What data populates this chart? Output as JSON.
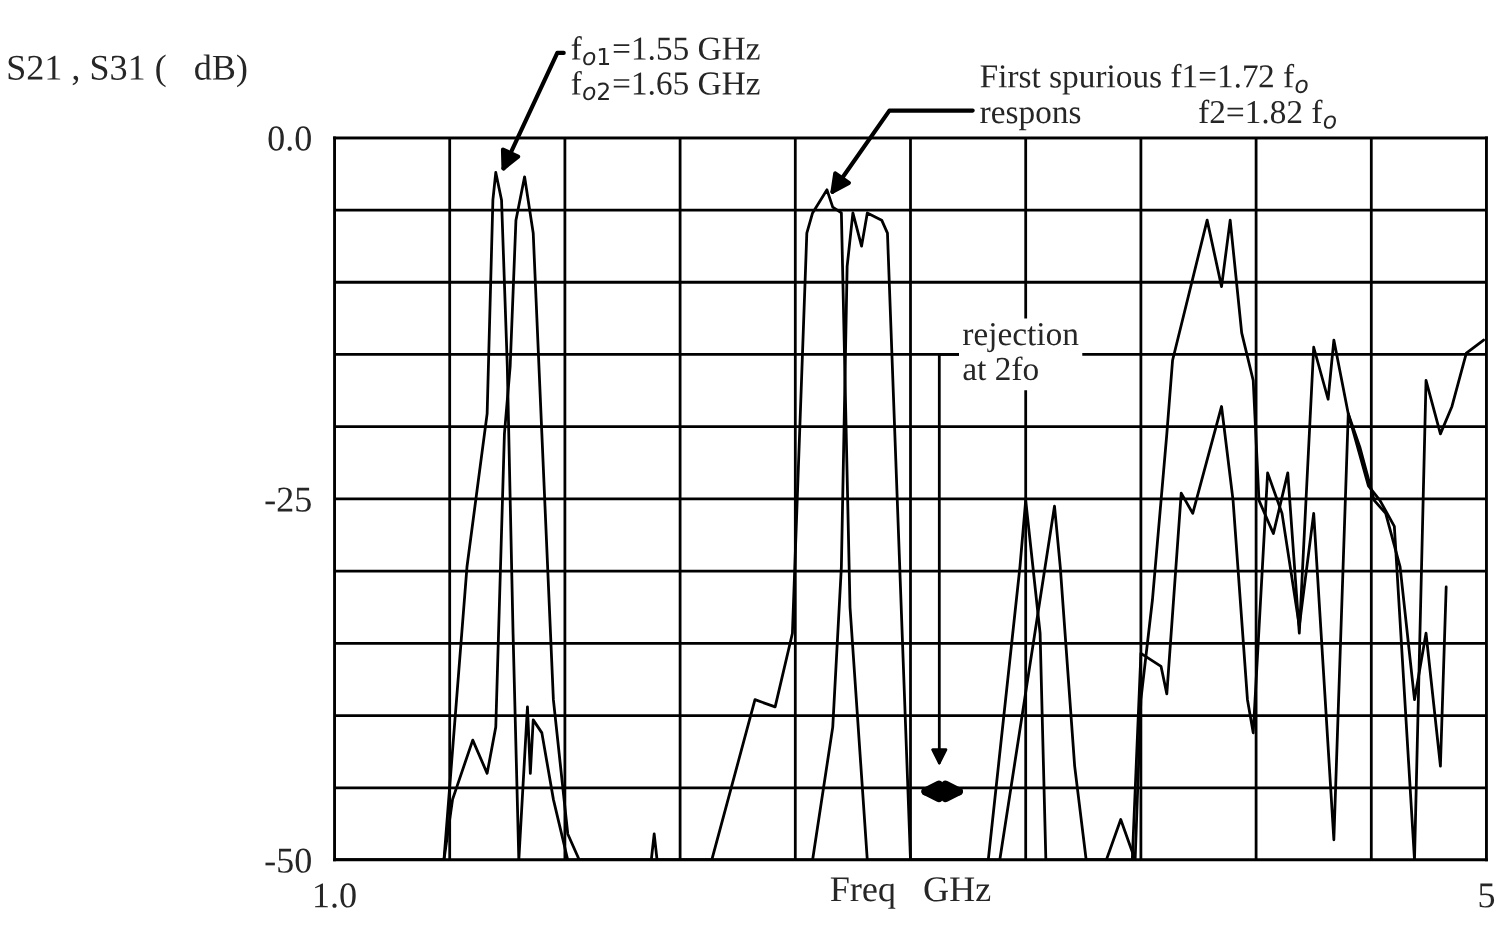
{
  "chart_data": {
    "type": "line",
    "ylabel": "S21 , S31 (   dB)",
    "xlabel": "Freq   GHz",
    "xlim": [
      1,
      5
    ],
    "ylim": [
      -50,
      0
    ],
    "xticks": [
      {
        "value": 1,
        "label": "1.0"
      },
      {
        "value": 1.4,
        "label": null
      },
      {
        "value": 1.8,
        "label": null
      },
      {
        "value": 2.2,
        "label": null
      },
      {
        "value": 2.6,
        "label": null
      },
      {
        "value": 3.0,
        "label": null
      },
      {
        "value": 3.4,
        "label": null
      },
      {
        "value": 3.8,
        "label": null
      },
      {
        "value": 4.2,
        "label": null
      },
      {
        "value": 4.6,
        "label": null
      },
      {
        "value": 5,
        "label": "5"
      }
    ],
    "yticks": [
      {
        "value": -50,
        "label": "-50"
      },
      {
        "value": -45,
        "label": null
      },
      {
        "value": -40,
        "label": null
      },
      {
        "value": -35,
        "label": null
      },
      {
        "value": -30,
        "label": null
      },
      {
        "value": -25,
        "label": "-25"
      },
      {
        "value": -20,
        "label": null
      },
      {
        "value": -15,
        "label": null
      },
      {
        "value": -10,
        "label": null
      },
      {
        "value": -5,
        "label": null
      },
      {
        "value": 0,
        "label": "0.0"
      }
    ],
    "grid": true,
    "marker": "none",
    "line_style": "solid",
    "series": [
      {
        "color": "#000000",
        "x": [
          1.0,
          1.38,
          1.46,
          1.53,
          1.55,
          1.56,
          1.58,
          1.6,
          1.62,
          1.64,
          1.67,
          1.68,
          1.69,
          1.72,
          1.76,
          1.81,
          2.1,
          2.11,
          2.12,
          2.31,
          2.46,
          2.53,
          2.59,
          2.64,
          2.66,
          2.71,
          2.73,
          2.76,
          2.79,
          2.85,
          3.27,
          3.38,
          3.4,
          3.45,
          3.47,
          3.68,
          3.73,
          3.78,
          3.8,
          3.84,
          3.89,
          3.91,
          4.03,
          4.08,
          4.11,
          4.15,
          4.19,
          4.21,
          4.26,
          4.31,
          4.35,
          4.4,
          4.45,
          4.47,
          4.52,
          4.56,
          4.61,
          4.65,
          4.7,
          4.75,
          4.79,
          4.84,
          4.86
        ],
        "values": [
          -50,
          -50,
          -29.7,
          -19.1,
          -4.3,
          -2.4,
          -4.3,
          -15.8,
          -34.3,
          -50,
          -39.4,
          -44.0,
          -40.3,
          -41.2,
          -45.8,
          -50,
          -50,
          -48.2,
          -50,
          -50,
          -38.9,
          -39.4,
          -34.3,
          -6.6,
          -5.2,
          -3.6,
          -4.8,
          -5.2,
          -32.5,
          -50,
          -50,
          -29.7,
          -25.1,
          -34.3,
          -50,
          -50,
          -47.2,
          -50,
          -38.9,
          -32.0,
          -20.5,
          -15.4,
          -5.7,
          -10.3,
          -5.7,
          -13.5,
          -16.8,
          -25.1,
          -27.4,
          -23.2,
          -34.3,
          -14.5,
          -18.1,
          -14.0,
          -19.1,
          -21.4,
          -25.1,
          -26.0,
          -29.7,
          -38.9,
          -34.3,
          -43.5,
          -31.1
        ]
      },
      {
        "color": "#000000",
        "x": [
          1.0,
          1.38,
          1.41,
          1.48,
          1.53,
          1.56,
          1.59,
          1.61,
          1.63,
          1.66,
          1.69,
          1.72,
          1.76,
          1.81,
          1.85,
          2.66,
          2.73,
          2.76,
          2.78,
          2.8,
          2.83,
          2.85,
          2.9,
          2.92,
          3.0,
          3.31,
          3.5,
          3.52,
          3.57,
          3.61,
          3.77,
          3.8,
          3.87,
          3.89,
          3.94,
          3.98,
          4.08,
          4.12,
          4.17,
          4.19,
          4.24,
          4.29,
          4.35,
          4.4,
          4.47,
          4.52,
          4.59,
          4.63,
          4.68,
          4.75,
          4.79,
          4.84,
          4.88,
          4.93,
          4.99
        ],
        "values": [
          -50,
          -50,
          -45.8,
          -41.7,
          -44.0,
          -40.8,
          -20.5,
          -15.8,
          -5.7,
          -2.7,
          -6.6,
          -20.5,
          -38.9,
          -48.2,
          -50,
          -50,
          -40.8,
          -29.7,
          -8.9,
          -5.2,
          -7.5,
          -5.2,
          -5.7,
          -6.6,
          -50,
          -50,
          -25.5,
          -29.7,
          -43.5,
          -50,
          -50,
          -35.7,
          -36.6,
          -38.5,
          -24.6,
          -26.0,
          -18.6,
          -25.1,
          -38.9,
          -41.2,
          -23.2,
          -26.0,
          -33.8,
          -26.0,
          -48.6,
          -19.1,
          -24.1,
          -25.1,
          -26.9,
          -50,
          -16.8,
          -20.5,
          -18.6,
          -14.9,
          -14.0
        ]
      }
    ],
    "annotations": [
      {
        "text": "f$_{o1}$=1.55 GHz\nf$_{o2}$=1.65 GHz",
        "x": 1.58,
        "y": -2.4
      },
      {
        "text": "First spurious f1=1.72 f$_{o}$\nrespons              f2=1.82 f$_{o}$",
        "x": 2.72,
        "y": -4.0
      },
      "rejection\nat 2fo"
    ]
  }
}
